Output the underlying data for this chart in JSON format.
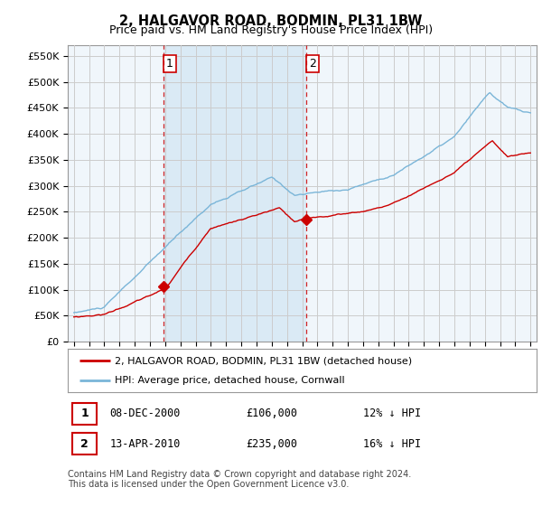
{
  "title": "2, HALGAVOR ROAD, BODMIN, PL31 1BW",
  "subtitle": "Price paid vs. HM Land Registry's House Price Index (HPI)",
  "title_fontsize": 10.5,
  "subtitle_fontsize": 9,
  "ylabel_ticks": [
    "£0",
    "£50K",
    "£100K",
    "£150K",
    "£200K",
    "£250K",
    "£300K",
    "£350K",
    "£400K",
    "£450K",
    "£500K",
    "£550K"
  ],
  "ytick_values": [
    0,
    50000,
    100000,
    150000,
    200000,
    250000,
    300000,
    350000,
    400000,
    450000,
    500000,
    550000
  ],
  "ylim": [
    0,
    570000
  ],
  "x_start_year": 1995,
  "x_end_year": 2025,
  "purchase1_year": 2000.92,
  "purchase1_value": 106000,
  "purchase1_label": "1",
  "purchase2_year": 2010.28,
  "purchase2_value": 235000,
  "purchase2_label": "2",
  "hpi_color": "#7ab5d8",
  "price_color": "#cc0000",
  "vline_color": "#cc0000",
  "grid_color": "#cccccc",
  "background_color": "#ffffff",
  "plot_bg_color": "#f0f6fb",
  "shaded_region_color": "#daeaf5",
  "legend_line1": "2, HALGAVOR ROAD, BODMIN, PL31 1BW (detached house)",
  "legend_line2": "HPI: Average price, detached house, Cornwall",
  "annotation1_date": "08-DEC-2000",
  "annotation1_price": "£106,000",
  "annotation1_hpi": "12% ↓ HPI",
  "annotation2_date": "13-APR-2010",
  "annotation2_price": "£235,000",
  "annotation2_hpi": "16% ↓ HPI",
  "footer": "Contains HM Land Registry data © Crown copyright and database right 2024.\nThis data is licensed under the Open Government Licence v3.0."
}
